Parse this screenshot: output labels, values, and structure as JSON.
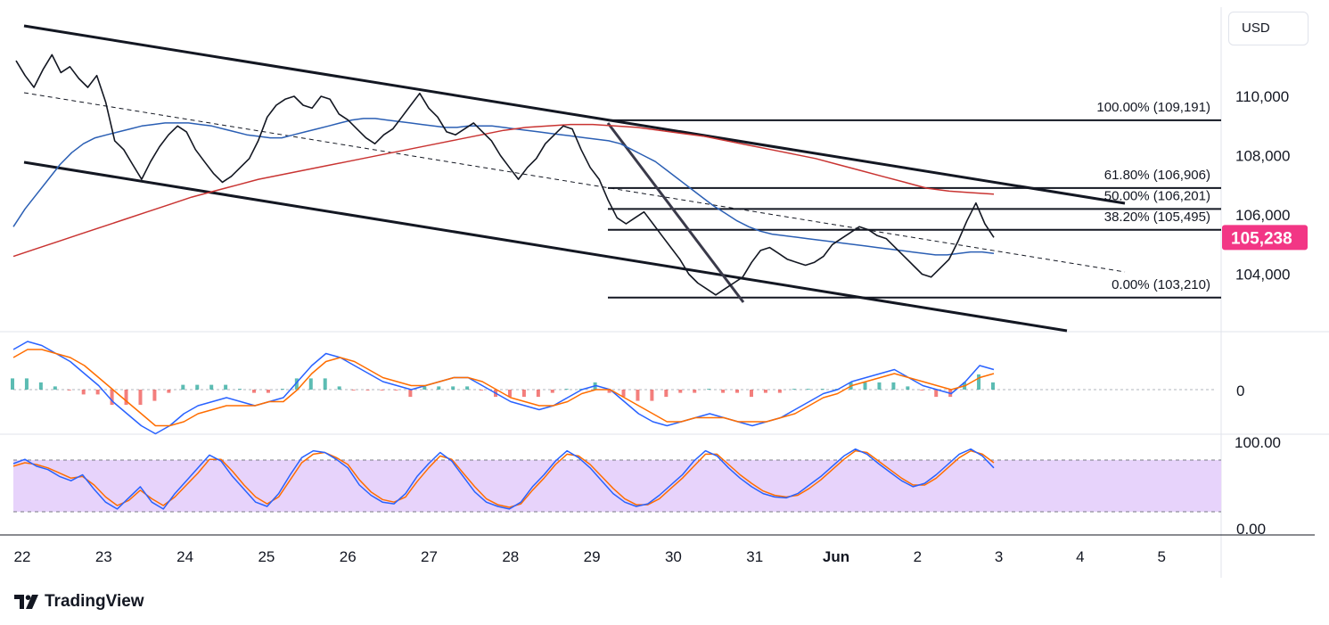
{
  "header": {
    "currency_label": "USD"
  },
  "branding": {
    "logo_text": "TradingView"
  },
  "price_axis": {
    "ticks": [
      "110,000",
      "108,000",
      "106,000",
      "104,000"
    ],
    "tick_values": [
      110000,
      108000,
      106000,
      104000
    ],
    "current_price_label": "105,238",
    "current_price": 105238,
    "current_price_color": "#f23685"
  },
  "macd_axis": {
    "zero_label": "0"
  },
  "stoch_axis": {
    "top_label": "100.00",
    "bottom_label": "0.00",
    "band_color": "#e7d3fb"
  },
  "time_axis": {
    "labels": [
      "22",
      "23",
      "24",
      "25",
      "26",
      "27",
      "28",
      "29",
      "30",
      "31",
      "Jun",
      "2",
      "3",
      "4",
      "5"
    ]
  },
  "fibonacci": {
    "levels": [
      {
        "label": "100.00% (109,191)",
        "value": 109191
      },
      {
        "label": "61.80% (106,906)",
        "value": 106906
      },
      {
        "label": "50.00% (106,201)",
        "value": 106201
      },
      {
        "label": "38.20% (105,495)",
        "value": 105495
      },
      {
        "label": "0.00% (103,210)",
        "value": 103210
      }
    ]
  },
  "chart_data": {
    "type": "line",
    "series": [
      {
        "values": [
          111200,
          110700,
          110300,
          110900,
          111400,
          110800,
          111000,
          110600,
          110300,
          110700,
          109800,
          108500,
          108200,
          107700,
          107200,
          107800,
          108300,
          108700,
          109000,
          108800,
          108200,
          107800,
          107400,
          107100,
          107300,
          107600,
          107900,
          108500,
          109300,
          109700,
          109900,
          110000,
          109700,
          109600,
          110000,
          109900,
          109400,
          109200,
          108900,
          108600,
          108400,
          108700,
          108900,
          109300,
          109700,
          110100,
          109600,
          109300,
          108800,
          108700,
          108900,
          109100,
          108800,
          108500,
          108000,
          107600,
          107200,
          107600,
          107900,
          108400,
          108700,
          109000,
          108900,
          108200,
          107600,
          107200,
          106500,
          105900,
          105700,
          105900,
          106100,
          105700,
          105300,
          104900,
          104500,
          104000,
          103700,
          103500,
          103300,
          103500,
          103700,
          103900,
          104400,
          104800,
          104900,
          104700,
          104500,
          104400,
          104300,
          104400,
          104600,
          105000,
          105200,
          105400,
          105600,
          105500,
          105300,
          105200,
          104900,
          104600,
          104300,
          104000,
          103900,
          104200,
          104500,
          105100,
          105800,
          106400,
          105700,
          105238
        ],
        "color": "#131722"
      },
      {
        "values": [
          105600,
          106200,
          106700,
          107200,
          107700,
          108100,
          108400,
          108600,
          108700,
          108800,
          108900,
          109000,
          109050,
          109100,
          109100,
          109100,
          109050,
          109000,
          108900,
          108800,
          108700,
          108650,
          108600,
          108600,
          108700,
          108800,
          108900,
          109000,
          109100,
          109200,
          109250,
          109250,
          109200,
          109150,
          109100,
          109050,
          109000,
          108950,
          108950,
          109000,
          109000,
          109000,
          108950,
          108900,
          108850,
          108800,
          108750,
          108700,
          108650,
          108600,
          108550,
          108500,
          108400,
          108200,
          108000,
          107800,
          107500,
          107200,
          106900,
          106600,
          106300,
          106050,
          105800,
          105600,
          105450,
          105350,
          105300,
          105250,
          105200,
          105150,
          105100,
          105050,
          105000,
          104950,
          104900,
          104850,
          104800,
          104750,
          104700,
          104650,
          104650,
          104700,
          104750,
          104750,
          104700
        ],
        "color": "#2b5fb4"
      },
      {
        "values": [
          104600,
          104850,
          105100,
          105350,
          105600,
          105850,
          106100,
          106350,
          106600,
          106800,
          107000,
          107200,
          107350,
          107500,
          107650,
          107800,
          107950,
          108100,
          108250,
          108400,
          108550,
          108700,
          108850,
          108950,
          109000,
          109050,
          109050,
          109000,
          108950,
          108850,
          108750,
          108650,
          108500,
          108350,
          108200,
          108050,
          107900,
          107700,
          107500,
          107300,
          107100,
          106900,
          106800,
          106750,
          106700
        ],
        "color": "#c93432"
      }
    ],
    "price_axis_ticks": [
      110000,
      108000,
      106000,
      104000
    ],
    "current_price": 105238,
    "fibonacci_levels": [
      109191,
      106906,
      106201,
      105495,
      103210
    ],
    "x_tick_labels": [
      "22",
      "23",
      "24",
      "25",
      "26",
      "27",
      "28",
      "29",
      "30",
      "31",
      "Jun",
      "2",
      "3",
      "4",
      "5"
    ],
    "stoch_range": [
      0,
      100
    ],
    "stoch_band": [
      20,
      80
    ],
    "stoch_k": [
      75,
      80,
      72,
      68,
      60,
      55,
      62,
      45,
      30,
      22,
      35,
      48,
      30,
      22,
      40,
      55,
      70,
      85,
      78,
      60,
      45,
      30,
      25,
      40,
      62,
      82,
      90,
      88,
      80,
      70,
      50,
      38,
      30,
      28,
      40,
      60,
      75,
      88,
      78,
      60,
      42,
      30,
      25,
      22,
      30,
      48,
      62,
      78,
      90,
      82,
      70,
      55,
      40,
      30,
      25,
      28,
      38,
      50,
      62,
      78,
      90,
      84,
      70,
      58,
      48,
      40,
      36,
      35,
      40,
      50,
      60,
      72,
      84,
      92,
      86,
      75,
      65,
      55,
      48,
      52,
      62,
      74,
      86,
      92,
      84,
      70
    ],
    "stoch_d": [
      72,
      76,
      74,
      70,
      64,
      58,
      60,
      50,
      36,
      26,
      32,
      44,
      34,
      26,
      36,
      50,
      64,
      80,
      80,
      66,
      50,
      36,
      28,
      36,
      56,
      76,
      86,
      88,
      82,
      74,
      56,
      42,
      33,
      30,
      36,
      54,
      70,
      84,
      80,
      64,
      48,
      34,
      27,
      24,
      28,
      44,
      58,
      74,
      86,
      84,
      74,
      60,
      46,
      34,
      27,
      27,
      34,
      46,
      58,
      72,
      86,
      86,
      74,
      62,
      52,
      43,
      38,
      36,
      38,
      46,
      56,
      68,
      80,
      90,
      88,
      78,
      68,
      58,
      50,
      50,
      58,
      70,
      82,
      90,
      86,
      76
    ],
    "macd_line": [
      1.0,
      1.2,
      1.1,
      0.9,
      0.7,
      0.4,
      0.1,
      -0.3,
      -0.6,
      -0.9,
      -1.1,
      -0.9,
      -0.6,
      -0.4,
      -0.3,
      -0.2,
      -0.3,
      -0.4,
      -0.3,
      -0.2,
      0.2,
      0.6,
      0.9,
      0.8,
      0.6,
      0.4,
      0.2,
      0.1,
      0.0,
      0.1,
      0.2,
      0.3,
      0.3,
      0.1,
      -0.1,
      -0.3,
      -0.4,
      -0.5,
      -0.4,
      -0.2,
      0.0,
      0.1,
      0.0,
      -0.3,
      -0.6,
      -0.8,
      -0.9,
      -0.8,
      -0.7,
      -0.6,
      -0.7,
      -0.8,
      -0.9,
      -0.8,
      -0.7,
      -0.5,
      -0.3,
      -0.1,
      0.0,
      0.2,
      0.3,
      0.4,
      0.5,
      0.3,
      0.1,
      0.0,
      -0.1,
      0.2,
      0.6,
      0.5
    ],
    "macd_signal": [
      0.8,
      1.0,
      1.0,
      0.9,
      0.8,
      0.6,
      0.3,
      0.0,
      -0.3,
      -0.6,
      -0.9,
      -0.9,
      -0.8,
      -0.6,
      -0.5,
      -0.4,
      -0.4,
      -0.4,
      -0.3,
      -0.3,
      0.0,
      0.4,
      0.7,
      0.8,
      0.7,
      0.5,
      0.3,
      0.2,
      0.1,
      0.1,
      0.2,
      0.3,
      0.3,
      0.2,
      0.0,
      -0.2,
      -0.3,
      -0.4,
      -0.4,
      -0.3,
      -0.1,
      0.0,
      0.0,
      -0.2,
      -0.4,
      -0.6,
      -0.8,
      -0.8,
      -0.7,
      -0.7,
      -0.7,
      -0.8,
      -0.8,
      -0.8,
      -0.7,
      -0.6,
      -0.4,
      -0.2,
      -0.1,
      0.1,
      0.2,
      0.3,
      0.4,
      0.3,
      0.2,
      0.1,
      0.0,
      0.1,
      0.3,
      0.4
    ]
  }
}
